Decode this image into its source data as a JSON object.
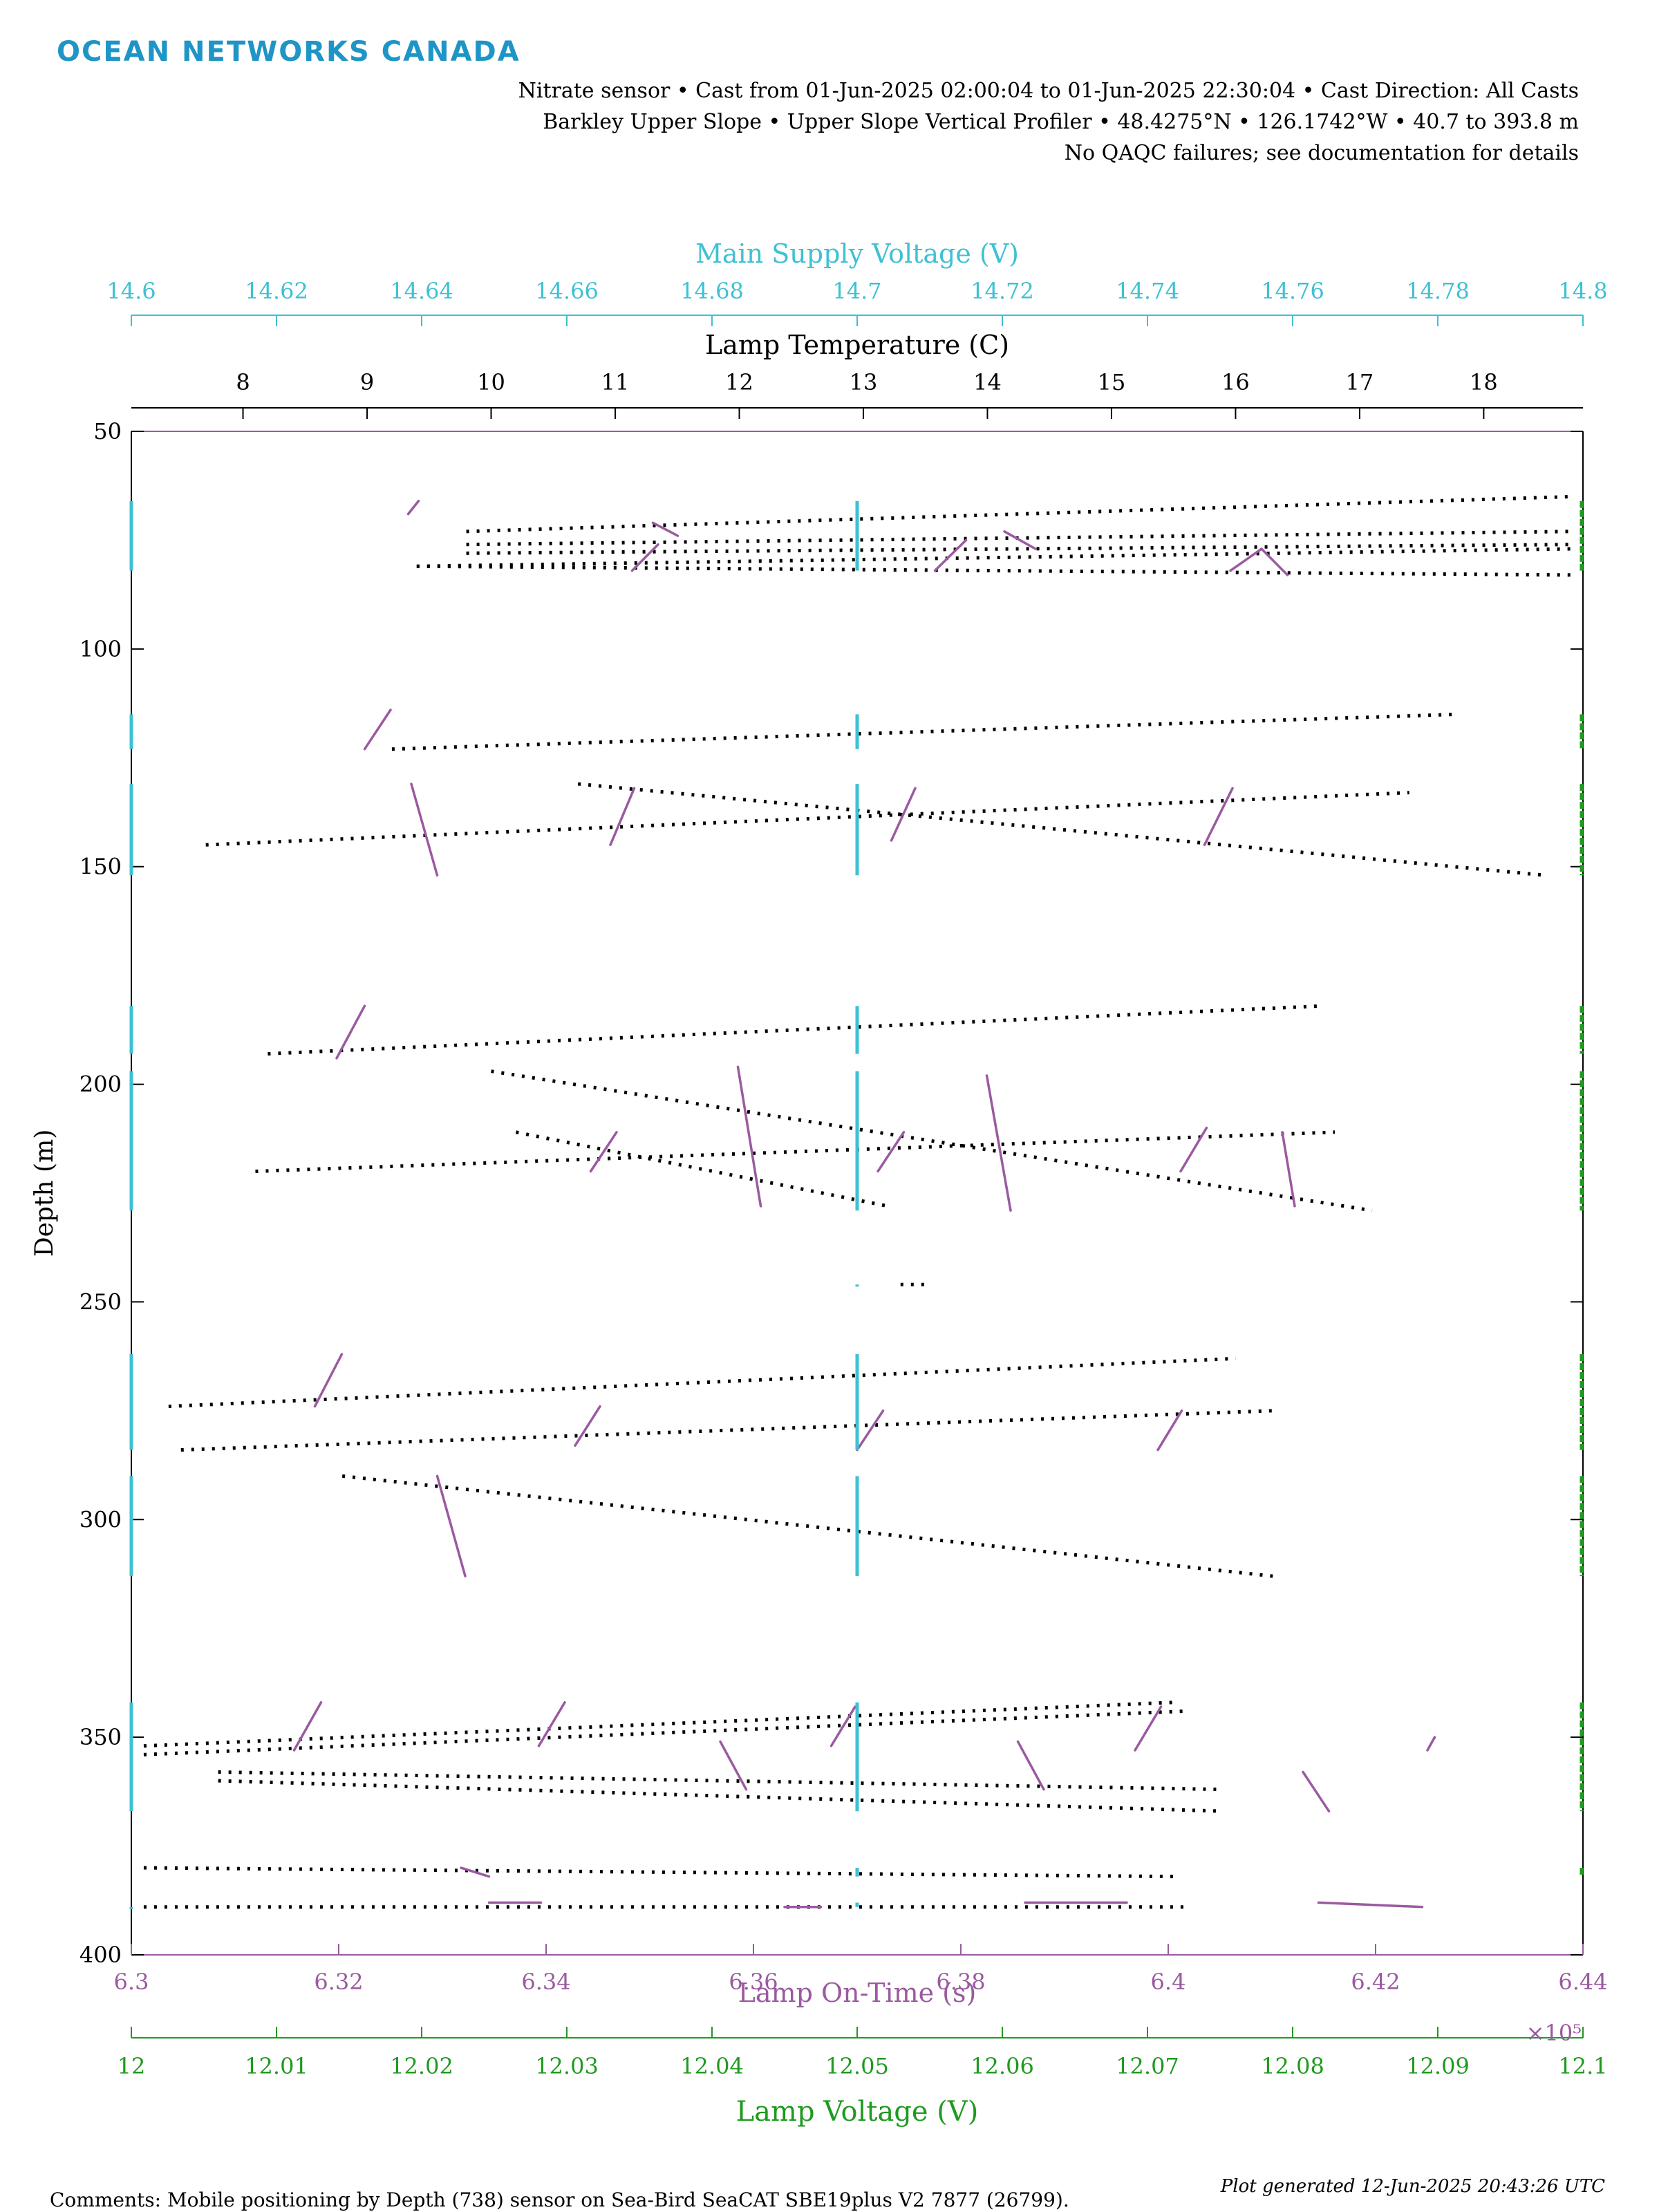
{
  "header": {
    "logo_text": "OCEAN NETWORKS CANADA",
    "line1": "Nitrate sensor • Cast from 01-Jun-2025 02:00:04 to 01-Jun-2025 22:30:04 • Cast Direction: All Casts",
    "line2": "Barkley Upper Slope • Upper Slope Vertical Profiler • 48.4275°N • 126.1742°W • 40.7 to 393.8 m",
    "line3": "No QAQC failures; see documentation for details"
  },
  "footer": {
    "comments": "Comments: Mobile positioning by Depth (738) sensor on Sea-Bird SeaCAT SBE19plus V2 7877 (26799).",
    "generated": "Plot generated 12-Jun-2025 20:43:26 UTC"
  },
  "colors": {
    "supply_voltage": "#3ec1d3",
    "lamp_temperature": "#000000",
    "lamp_on_time": "#9a5aa0",
    "lamp_voltage": "#1f9a1f",
    "axis": "#000000"
  },
  "chart_data": {
    "type": "scatter",
    "y_axis": {
      "label": "Depth (m)",
      "lim": [
        50,
        400
      ],
      "reversed": true,
      "ticks": [
        "50",
        "100",
        "150",
        "200",
        "250",
        "300",
        "350",
        "400"
      ]
    },
    "x_axes": {
      "supply_voltage": {
        "label": "Main Supply Voltage (V)",
        "lim": [
          14.6,
          14.8
        ],
        "ticks": [
          "14.6",
          "14.62",
          "14.64",
          "14.66",
          "14.68",
          "14.7",
          "14.72",
          "14.74",
          "14.76",
          "14.78",
          "14.8"
        ],
        "position": "top"
      },
      "lamp_temperature": {
        "label": "Lamp Temperature (C)",
        "lim": [
          7.1,
          18.8
        ],
        "ticks": [
          "8",
          "9",
          "10",
          "11",
          "12",
          "13",
          "14",
          "15",
          "16",
          "17",
          "18"
        ],
        "position": "top"
      },
      "lamp_on_time": {
        "label": "Lamp On-Time (s)",
        "lim": [
          6.3,
          6.44
        ],
        "ticks": [
          "6.3",
          "6.32",
          "6.34",
          "6.36",
          "6.38",
          "6.4",
          "6.42",
          "6.44"
        ],
        "exponent": "×10⁵",
        "position": "bottom"
      },
      "lamp_voltage": {
        "label": "Lamp Voltage (V)",
        "lim": [
          12,
          12.1
        ],
        "ticks": [
          "12",
          "12.01",
          "12.02",
          "12.03",
          "12.04",
          "12.05",
          "12.06",
          "12.07",
          "12.08",
          "12.09",
          "12.1"
        ],
        "position": "bottom"
      }
    },
    "series": [
      {
        "name": "Lamp Temperature (C)",
        "style": "dotted-line",
        "segments": [
          {
            "from": [
              9.8,
              73
            ],
            "to": [
              18.7,
              65
            ]
          },
          {
            "from": [
              9.8,
              76
            ],
            "to": [
              18.7,
              73
            ]
          },
          {
            "from": [
              9.8,
              78
            ],
            "to": [
              18.7,
              76
            ]
          },
          {
            "from": [
              9.4,
              81
            ],
            "to": [
              18.7,
              77
            ]
          },
          {
            "from": [
              9.4,
              81
            ],
            "to": [
              18.7,
              83
            ]
          },
          {
            "from": [
              9.2,
              123
            ],
            "to": [
              17.8,
              115
            ]
          },
          {
            "from": [
              10.7,
              131
            ],
            "to": [
              18.5,
              152
            ]
          },
          {
            "from": [
              7.7,
              145
            ],
            "to": [
              17.4,
              133
            ]
          },
          {
            "from": [
              8.2,
              193
            ],
            "to": [
              16.7,
              182
            ]
          },
          {
            "from": [
              10.0,
              197
            ],
            "to": [
              17.1,
              229
            ]
          },
          {
            "from": [
              10.2,
              211
            ],
            "to": [
              13.2,
              228
            ]
          },
          {
            "from": [
              8.1,
              220
            ],
            "to": [
              16.8,
              211
            ]
          },
          {
            "from": [
              13.3,
              246
            ],
            "to": [
              13.5,
              246
            ]
          },
          {
            "from": [
              7.4,
              274
            ],
            "to": [
              16.0,
              263
            ]
          },
          {
            "from": [
              7.5,
              284
            ],
            "to": [
              16.3,
              275
            ]
          },
          {
            "from": [
              8.8,
              290
            ],
            "to": [
              16.3,
              313
            ]
          },
          {
            "from": [
              7.2,
              352
            ],
            "to": [
              15.5,
              342
            ]
          },
          {
            "from": [
              7.2,
              354
            ],
            "to": [
              15.6,
              344
            ]
          },
          {
            "from": [
              7.8,
              358
            ],
            "to": [
              15.9,
              362
            ]
          },
          {
            "from": [
              7.8,
              360
            ],
            "to": [
              15.9,
              367
            ]
          },
          {
            "from": [
              7.2,
              380
            ],
            "to": [
              15.5,
              382
            ]
          },
          {
            "from": [
              7.2,
              389
            ],
            "to": [
              15.6,
              389
            ]
          }
        ]
      },
      {
        "name": "Lamp On-Time (s)",
        "style": "line-segments",
        "segments": [
          {
            "from": [
              6.3267,
              69
            ],
            "to": [
              6.3277,
              66
            ]
          },
          {
            "from": [
              6.3503,
              71
            ],
            "to": [
              6.3527,
              74
            ]
          },
          {
            "from": [
              6.3483,
              82
            ],
            "to": [
              6.3508,
              76
            ]
          },
          {
            "from": [
              6.3842,
              73
            ],
            "to": [
              6.3872,
              77
            ]
          },
          {
            "from": [
              6.3775,
              82
            ],
            "to": [
              6.3805,
              75
            ]
          },
          {
            "from": [
              6.406,
              82
            ],
            "to": [
              6.409,
              77
            ]
          },
          {
            "from": [
              6.409,
              77
            ],
            "to": [
              6.4115,
              83
            ]
          },
          {
            "from": [
              6.3225,
              123
            ],
            "to": [
              6.325,
              114
            ]
          },
          {
            "from": [
              6.327,
              131
            ],
            "to": [
              6.3295,
              152
            ]
          },
          {
            "from": [
              6.3462,
              145
            ],
            "to": [
              6.3485,
              132
            ]
          },
          {
            "from": [
              6.3733,
              144
            ],
            "to": [
              6.3756,
              132
            ]
          },
          {
            "from": [
              6.4035,
              145
            ],
            "to": [
              6.4062,
              132
            ]
          },
          {
            "from": [
              6.3198,
              194
            ],
            "to": [
              6.3225,
              182
            ]
          },
          {
            "from": [
              6.3585,
              196
            ],
            "to": [
              6.3607,
              228
            ]
          },
          {
            "from": [
              6.3443,
              220
            ],
            "to": [
              6.3468,
              211
            ]
          },
          {
            "from": [
              6.3825,
              198
            ],
            "to": [
              6.3848,
              229
            ]
          },
          {
            "from": [
              6.372,
              220
            ],
            "to": [
              6.3745,
              211
            ]
          },
          {
            "from": [
              6.4012,
              220
            ],
            "to": [
              6.4037,
              210
            ]
          },
          {
            "from": [
              6.411,
              211
            ],
            "to": [
              6.4122,
              228
            ]
          },
          {
            "from": [
              6.3177,
              274
            ],
            "to": [
              6.3203,
              262
            ]
          },
          {
            "from": [
              6.3428,
              283
            ],
            "to": [
              6.3452,
              274
            ]
          },
          {
            "from": [
              6.37,
              284
            ],
            "to": [
              6.3725,
              275
            ]
          },
          {
            "from": [
              6.399,
              284
            ],
            "to": [
              6.4013,
              275
            ]
          },
          {
            "from": [
              6.3295,
              290
            ],
            "to": [
              6.3322,
              313
            ]
          },
          {
            "from": [
              6.3157,
              353
            ],
            "to": [
              6.3183,
              342
            ]
          },
          {
            "from": [
              6.3393,
              352
            ],
            "to": [
              6.3418,
              342
            ]
          },
          {
            "from": [
              6.3568,
              351
            ],
            "to": [
              6.3593,
              362
            ]
          },
          {
            "from": [
              6.3675,
              352
            ],
            "to": [
              6.3698,
              343
            ]
          },
          {
            "from": [
              6.3855,
              351
            ],
            "to": [
              6.388,
              362
            ]
          },
          {
            "from": [
              6.3968,
              353
            ],
            "to": [
              6.3993,
              343
            ]
          },
          {
            "from": [
              6.413,
              358
            ],
            "to": [
              6.4155,
              367
            ]
          },
          {
            "from": [
              6.425,
              353
            ],
            "to": [
              6.4257,
              350
            ]
          },
          {
            "from": [
              6.3318,
              380
            ],
            "to": [
              6.3345,
              382
            ]
          },
          {
            "from": [
              6.3345,
              388
            ],
            "to": [
              6.3395,
              388
            ]
          },
          {
            "from": [
              6.363,
              389
            ],
            "to": [
              6.3665,
              389
            ]
          },
          {
            "from": [
              6.3862,
              388
            ],
            "to": [
              6.396,
              388
            ]
          },
          {
            "from": [
              6.4145,
              388
            ],
            "to": [
              6.4245,
              389
            ]
          }
        ]
      },
      {
        "name": "Main Supply Voltage (V)",
        "style": "vertical-segments",
        "segments": [
          {
            "x": 14.7,
            "y": [
              66,
              82
            ]
          },
          {
            "x": 14.7,
            "y": [
              115,
              123
            ]
          },
          {
            "x": 14.7,
            "y": [
              131,
              152
            ]
          },
          {
            "x": 14.7,
            "y": [
              182,
              193
            ]
          },
          {
            "x": 14.7,
            "y": [
              197,
              229
            ]
          },
          {
            "x": 14.7,
            "y": [
              246,
              246
            ]
          },
          {
            "x": 14.7,
            "y": [
              262,
              284
            ]
          },
          {
            "x": 14.7,
            "y": [
              290,
              313
            ]
          },
          {
            "x": 14.7,
            "y": [
              342,
              367
            ]
          },
          {
            "x": 14.7,
            "y": [
              380,
              382
            ]
          },
          {
            "x": 14.7,
            "y": [
              388,
              389
            ]
          },
          {
            "x": 14.6,
            "y": [
              66,
              82
            ]
          },
          {
            "x": 14.6,
            "y": [
              115,
              123
            ]
          },
          {
            "x": 14.6,
            "y": [
              131,
              152
            ]
          },
          {
            "x": 14.6,
            "y": [
              182,
              193
            ]
          },
          {
            "x": 14.6,
            "y": [
              197,
              229
            ]
          },
          {
            "x": 14.6,
            "y": [
              262,
              284
            ]
          },
          {
            "x": 14.6,
            "y": [
              290,
              313
            ]
          },
          {
            "x": 14.6,
            "y": [
              342,
              367
            ]
          },
          {
            "x": 14.6,
            "y": [
              389,
              389
            ]
          }
        ]
      },
      {
        "name": "Lamp Voltage (V)",
        "style": "vertical-segments",
        "segments": [
          {
            "x": 12.1,
            "y": [
              66,
              82
            ]
          },
          {
            "x": 12.1,
            "y": [
              115,
              123
            ]
          },
          {
            "x": 12.1,
            "y": [
              131,
              152
            ]
          },
          {
            "x": 12.1,
            "y": [
              182,
              193
            ]
          },
          {
            "x": 12.1,
            "y": [
              197,
              229
            ]
          },
          {
            "x": 12.1,
            "y": [
              262,
              284
            ]
          },
          {
            "x": 12.1,
            "y": [
              290,
              313
            ]
          },
          {
            "x": 12.1,
            "y": [
              342,
              367
            ]
          },
          {
            "x": 12.1,
            "y": [
              380,
              382
            ]
          }
        ]
      }
    ]
  }
}
